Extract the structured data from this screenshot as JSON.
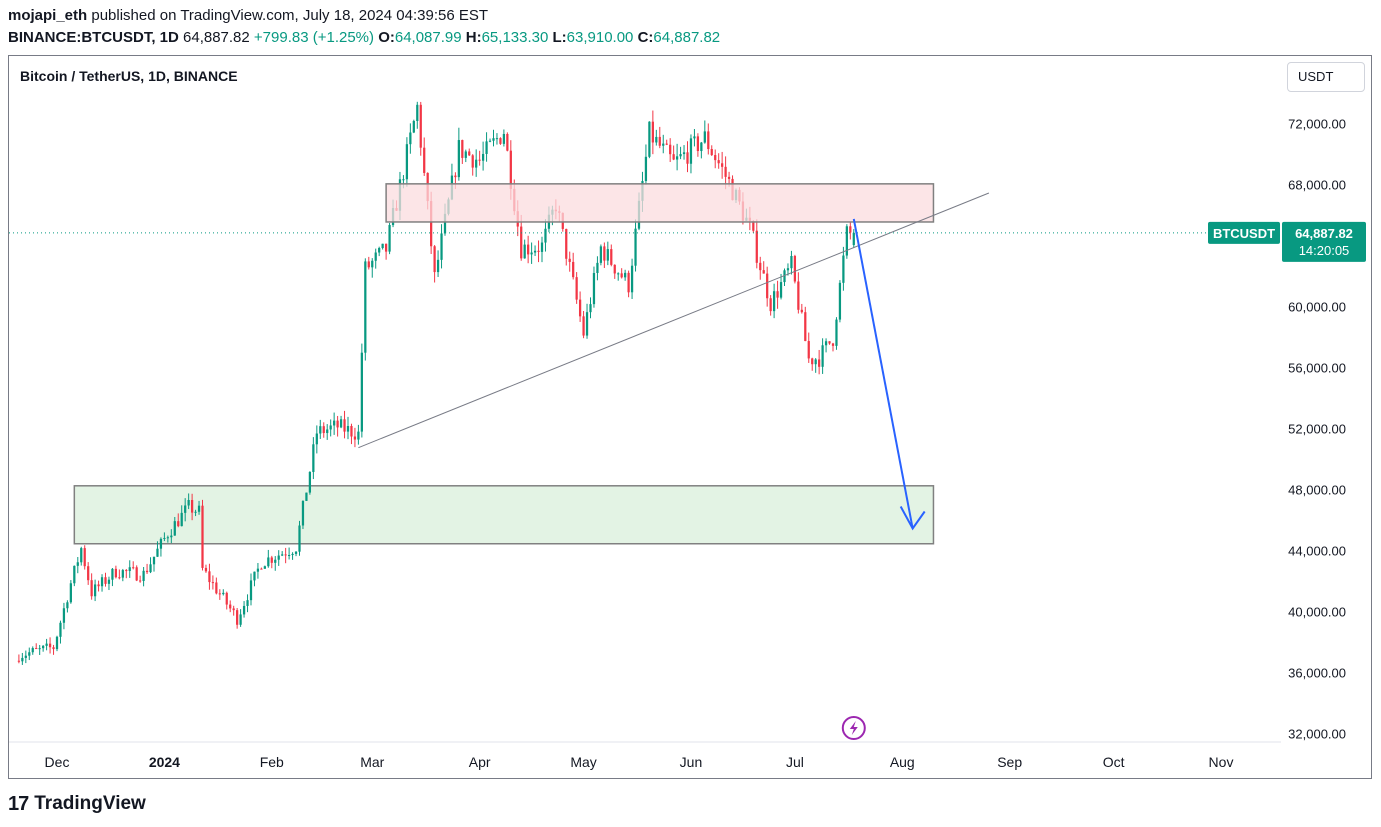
{
  "header": {
    "author": "mojapi_eth",
    "published": "published on TradingView.com, July 18, 2024 04:39:56 EST",
    "symbol_line": "BINANCE:BTCUSDT, 1D",
    "last": "64,887.82",
    "change": "+799.83 (+1.25%)",
    "o_label": "O:",
    "o": "64,087.99",
    "h_label": "H:",
    "h": "65,133.30",
    "l_label": "L:",
    "l": "63,910.00",
    "c_label": "C:",
    "c": "64,887.82"
  },
  "legend": {
    "title": "Bitcoin / TetherUS, 1D, BINANCE"
  },
  "currency": "USDT",
  "price_tag": {
    "symbol": "BTCUSDT",
    "price": "64,887.82",
    "countdown": "14:20:05"
  },
  "footer": {
    "brand": "TradingView",
    "logo": "tradingview-logo"
  },
  "colors": {
    "up": "#089981",
    "down": "#f23645",
    "arrow": "#2962ff",
    "resistance_fill": "#fbdcdf",
    "support_fill": "#e3f3e4",
    "zone_border": "#808080",
    "event_icon": "#9c27b0"
  },
  "chart_data": {
    "type": "candlestick",
    "title": "Bitcoin / TetherUS, 1D, BINANCE",
    "ylim": [
      31500,
      75500
    ],
    "y_ticks": [
      {
        "value": 72000,
        "label": "72,000.00"
      },
      {
        "value": 68000,
        "label": "68,000.00"
      },
      {
        "value": 60000,
        "label": "60,000.00"
      },
      {
        "value": 56000,
        "label": "56,000.00"
      },
      {
        "value": 52000,
        "label": "52,000.00"
      },
      {
        "value": 48000,
        "label": "48,000.00"
      },
      {
        "value": 44000,
        "label": "44,000.00"
      },
      {
        "value": 40000,
        "label": "40,000.00"
      },
      {
        "value": 36000,
        "label": "36,000.00"
      },
      {
        "value": 32000,
        "label": "32,000.00"
      }
    ],
    "x_ticks": [
      {
        "date": "2023-12-01",
        "label": "Dec",
        "bold": false
      },
      {
        "date": "2024-01-01",
        "label": "2024",
        "bold": true
      },
      {
        "date": "2024-02-01",
        "label": "Feb",
        "bold": false
      },
      {
        "date": "2024-03-01",
        "label": "Mar",
        "bold": false
      },
      {
        "date": "2024-04-01",
        "label": "Apr",
        "bold": false
      },
      {
        "date": "2024-05-01",
        "label": "May",
        "bold": false
      },
      {
        "date": "2024-06-01",
        "label": "Jun",
        "bold": false
      },
      {
        "date": "2024-07-01",
        "label": "Jul",
        "bold": false
      },
      {
        "date": "2024-08-01",
        "label": "Aug",
        "bold": false
      },
      {
        "date": "2024-09-01",
        "label": "Sep",
        "bold": false
      },
      {
        "date": "2024-10-01",
        "label": "Oct",
        "bold": false
      },
      {
        "date": "2024-11-01",
        "label": "Nov",
        "bold": false
      }
    ],
    "series_anchors": [
      {
        "date": "2023-11-20",
        "close": 37200
      },
      {
        "date": "2023-11-30",
        "close": 37700
      },
      {
        "date": "2023-12-05",
        "close": 41900
      },
      {
        "date": "2023-12-08",
        "close": 44200
      },
      {
        "date": "2023-12-11",
        "close": 41300
      },
      {
        "date": "2023-12-18",
        "close": 42700
      },
      {
        "date": "2023-12-26",
        "close": 42500
      },
      {
        "date": "2024-01-02",
        "close": 45200
      },
      {
        "date": "2024-01-08",
        "close": 46900
      },
      {
        "date": "2024-01-11",
        "close": 46600
      },
      {
        "date": "2024-01-12",
        "close": 42800
      },
      {
        "date": "2024-01-22",
        "close": 39600
      },
      {
        "date": "2024-01-29",
        "close": 43300
      },
      {
        "date": "2024-02-08",
        "close": 44300
      },
      {
        "date": "2024-02-14",
        "close": 51800
      },
      {
        "date": "2024-02-20",
        "close": 52200
      },
      {
        "date": "2024-02-26",
        "close": 51700
      },
      {
        "date": "2024-02-28",
        "close": 62500
      },
      {
        "date": "2024-03-05",
        "close": 63800
      },
      {
        "date": "2024-03-14",
        "close": 73100
      },
      {
        "date": "2024-03-19",
        "close": 61900
      },
      {
        "date": "2024-03-26",
        "close": 70400
      },
      {
        "date": "2024-04-01",
        "close": 69600
      },
      {
        "date": "2024-04-08",
        "close": 71600
      },
      {
        "date": "2024-04-13",
        "close": 63900
      },
      {
        "date": "2024-04-19",
        "close": 64000
      },
      {
        "date": "2024-04-23",
        "close": 66800
      },
      {
        "date": "2024-05-01",
        "close": 58300
      },
      {
        "date": "2024-05-06",
        "close": 63900
      },
      {
        "date": "2024-05-14",
        "close": 61500
      },
      {
        "date": "2024-05-20",
        "close": 71400
      },
      {
        "date": "2024-05-27",
        "close": 69400
      },
      {
        "date": "2024-06-05",
        "close": 71100
      },
      {
        "date": "2024-06-12",
        "close": 68200
      },
      {
        "date": "2024-06-18",
        "close": 65200
      },
      {
        "date": "2024-06-24",
        "close": 60300
      },
      {
        "date": "2024-06-30",
        "close": 62700
      },
      {
        "date": "2024-07-05",
        "close": 56600
      },
      {
        "date": "2024-07-08",
        "close": 56700
      },
      {
        "date": "2024-07-12",
        "close": 58000
      },
      {
        "date": "2024-07-16",
        "close": 64800
      },
      {
        "date": "2024-07-18",
        "close": 64887.82
      }
    ],
    "annotations": {
      "resistance_zone": {
        "from": "2024-03-05",
        "to": "2024-08-10",
        "low": 65600,
        "high": 68100
      },
      "support_zone": {
        "from": "2023-12-06",
        "to": "2024-08-10",
        "low": 44500,
        "high": 48300
      },
      "trendline": {
        "from": {
          "date": "2024-02-26",
          "price": 50800
        },
        "to": {
          "date": "2024-08-26",
          "price": 67500
        }
      },
      "projection_arrow": {
        "from": {
          "date": "2024-07-18",
          "price": 65800
        },
        "to": {
          "date": "2024-08-04",
          "price": 45500
        }
      },
      "current_price": 64887.82
    }
  }
}
